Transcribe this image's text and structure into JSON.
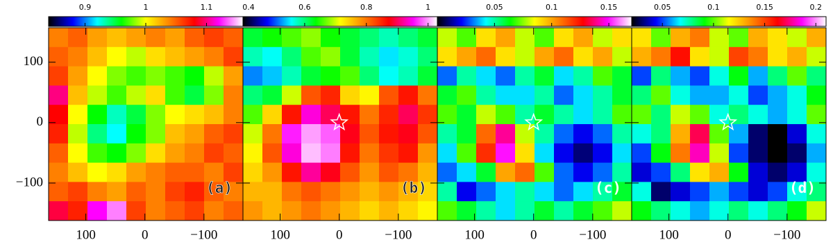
{
  "colormap": [
    "#000000",
    "#0000ff",
    "#00ffff",
    "#00ff00",
    "#ffff00",
    "#ff8000",
    "#ff0000",
    "#ff00ff",
    "#ffffff"
  ],
  "chart_data": [
    {
      "type": "heatmap",
      "label": "(a)",
      "label_color": "#222222",
      "clim": [
        0.84,
        1.16
      ],
      "cticks": [
        0.9,
        1,
        1.1
      ],
      "xlim": [
        163,
        -166
      ],
      "xticks": [
        100,
        0,
        {
          "value": -100,
          "label": "−100"
        }
      ],
      "ylim": [
        -162,
        157
      ],
      "yticks": [
        100,
        0,
        {
          "value": -100,
          "label": "−100"
        }
      ],
      "z": [
        [
          1.04,
          1.05,
          1.03,
          1.02,
          1.03,
          1.04,
          1.03,
          1.05,
          1.06,
          1.05
        ],
        [
          1.05,
          1.04,
          1.02,
          1.0,
          0.99,
          1.01,
          1.02,
          1.03,
          1.04,
          1.06
        ],
        [
          1.06,
          1.03,
          1.0,
          0.98,
          0.97,
          0.98,
          0.97,
          0.96,
          0.99,
          1.03
        ],
        [
          1.1,
          1.02,
          0.99,
          0.97,
          0.99,
          1.01,
          0.97,
          0.95,
          0.98,
          1.04
        ],
        [
          1.08,
          1.0,
          0.96,
          0.93,
          0.95,
          0.98,
          1.0,
          1.01,
          1.02,
          1.04
        ],
        [
          1.07,
          0.99,
          0.94,
          0.92,
          0.96,
          0.98,
          1.02,
          1.03,
          1.05,
          1.06
        ],
        [
          1.05,
          1.0,
          0.97,
          0.96,
          0.98,
          1.01,
          1.03,
          1.04,
          1.06,
          1.05
        ],
        [
          1.04,
          1.02,
          1.0,
          1.01,
          1.03,
          1.04,
          1.05,
          1.05,
          1.04,
          1.06
        ],
        [
          1.05,
          1.06,
          1.04,
          1.03,
          1.05,
          1.04,
          1.06,
          1.07,
          1.05,
          1.04
        ],
        [
          1.09,
          1.07,
          1.12,
          1.14,
          1.06,
          1.04,
          1.05,
          1.06,
          1.04,
          1.05
        ]
      ]
    },
    {
      "type": "heatmap",
      "label": "(b)",
      "label_color": "#222222",
      "clim": [
        0.4,
        1.03
      ],
      "cticks": [
        0.4,
        0.6,
        0.8,
        1
      ],
      "xlim": [
        163,
        -166
      ],
      "xticks": [
        100,
        0,
        {
          "value": -100,
          "label": "−100"
        }
      ],
      "marker": {
        "x": 0,
        "y": 0
      },
      "z": [
        [
          0.62,
          0.64,
          0.66,
          0.68,
          0.64,
          0.62,
          0.6,
          0.58,
          0.6,
          0.62
        ],
        [
          0.58,
          0.56,
          0.6,
          0.66,
          0.68,
          0.62,
          0.58,
          0.55,
          0.57,
          0.6
        ],
        [
          0.52,
          0.54,
          0.58,
          0.62,
          0.64,
          0.66,
          0.6,
          0.56,
          0.58,
          0.62
        ],
        [
          0.6,
          0.62,
          0.7,
          0.82,
          0.85,
          0.74,
          0.72,
          0.82,
          0.86,
          0.8
        ],
        [
          0.66,
          0.74,
          0.86,
          0.94,
          0.9,
          0.86,
          0.8,
          0.85,
          0.9,
          0.84
        ],
        [
          0.7,
          0.8,
          0.96,
          1.0,
          0.98,
          0.88,
          0.82,
          0.86,
          0.88,
          0.82
        ],
        [
          0.72,
          0.82,
          0.94,
          1.01,
          0.99,
          0.86,
          0.8,
          0.84,
          0.86,
          0.78
        ],
        [
          0.74,
          0.78,
          0.86,
          0.92,
          0.88,
          0.82,
          0.78,
          0.82,
          0.8,
          0.76
        ],
        [
          0.76,
          0.76,
          0.8,
          0.82,
          0.8,
          0.78,
          0.76,
          0.78,
          0.76,
          0.74
        ],
        [
          0.78,
          0.76,
          0.78,
          0.8,
          0.78,
          0.76,
          0.74,
          0.76,
          0.74,
          0.72
        ]
      ]
    },
    {
      "type": "heatmap",
      "label": "(c)",
      "label_color": "#ffffff",
      "clim": [
        0,
        0.17
      ],
      "cticks": [
        0.05,
        0.1,
        0.15
      ],
      "xlim": [
        163,
        -166
      ],
      "xticks": [
        100,
        0,
        {
          "value": -100,
          "label": "−100"
        }
      ],
      "marker": {
        "x": 0,
        "y": 0
      },
      "z": [
        [
          0.08,
          0.07,
          0.09,
          0.1,
          0.08,
          0.07,
          0.09,
          0.1,
          0.08,
          0.09
        ],
        [
          0.09,
          0.1,
          0.11,
          0.09,
          0.08,
          0.1,
          0.11,
          0.09,
          0.1,
          0.08
        ],
        [
          0.03,
          0.05,
          0.04,
          0.03,
          0.05,
          0.06,
          0.04,
          0.05,
          0.07,
          0.06
        ],
        [
          0.06,
          0.07,
          0.05,
          0.04,
          0.04,
          0.05,
          0.03,
          0.04,
          0.05,
          0.06
        ],
        [
          0.07,
          0.06,
          0.08,
          0.07,
          0.05,
          0.06,
          0.05,
          0.04,
          0.05,
          0.07
        ],
        [
          0.05,
          0.06,
          0.11,
          0.14,
          0.08,
          0.05,
          0.03,
          0.02,
          0.03,
          0.05
        ],
        [
          0.04,
          0.07,
          0.12,
          0.15,
          0.09,
          0.04,
          0.02,
          0.01,
          0.02,
          0.04
        ],
        [
          0.03,
          0.04,
          0.06,
          0.1,
          0.11,
          0.07,
          0.03,
          0.02,
          0.03,
          0.05
        ],
        [
          0.05,
          0.02,
          0.03,
          0.04,
          0.05,
          0.04,
          0.03,
          0.04,
          0.05,
          0.06
        ],
        [
          0.07,
          0.06,
          0.05,
          0.04,
          0.05,
          0.06,
          0.05,
          0.06,
          0.07,
          0.08
        ]
      ]
    },
    {
      "type": "heatmap",
      "label": "(d)",
      "label_color": "#ffffff",
      "clim": [
        0.02,
        0.21
      ],
      "cticks": [
        0.05,
        0.1,
        0.15,
        0.2
      ],
      "xlim": [
        163,
        -166
      ],
      "xticks": [
        100,
        0,
        {
          "value": -100,
          "label": "−100"
        }
      ],
      "marker": {
        "x": 0,
        "y": 0
      },
      "z": [
        [
          0.12,
          0.1,
          0.13,
          0.14,
          0.11,
          0.1,
          0.13,
          0.12,
          0.11,
          0.13
        ],
        [
          0.13,
          0.14,
          0.16,
          0.12,
          0.11,
          0.15,
          0.14,
          0.12,
          0.13,
          0.11
        ],
        [
          0.05,
          0.08,
          0.06,
          0.05,
          0.07,
          0.09,
          0.06,
          0.08,
          0.1,
          0.08
        ],
        [
          0.08,
          0.1,
          0.07,
          0.06,
          0.06,
          0.07,
          0.05,
          0.06,
          0.07,
          0.09
        ],
        [
          0.1,
          0.08,
          0.11,
          0.1,
          0.07,
          0.08,
          0.07,
          0.06,
          0.07,
          0.1
        ],
        [
          0.07,
          0.08,
          0.13,
          0.17,
          0.1,
          0.06,
          0.03,
          0.02,
          0.04,
          0.07
        ],
        [
          0.05,
          0.09,
          0.14,
          0.18,
          0.11,
          0.05,
          0.03,
          0.02,
          0.03,
          0.06
        ],
        [
          0.04,
          0.05,
          0.08,
          0.12,
          0.13,
          0.09,
          0.04,
          0.03,
          0.04,
          0.07
        ],
        [
          0.07,
          0.03,
          0.04,
          0.05,
          0.06,
          0.05,
          0.04,
          0.05,
          0.07,
          0.08
        ],
        [
          0.09,
          0.08,
          0.07,
          0.06,
          0.07,
          0.08,
          0.07,
          0.08,
          0.09,
          0.11
        ]
      ]
    }
  ]
}
